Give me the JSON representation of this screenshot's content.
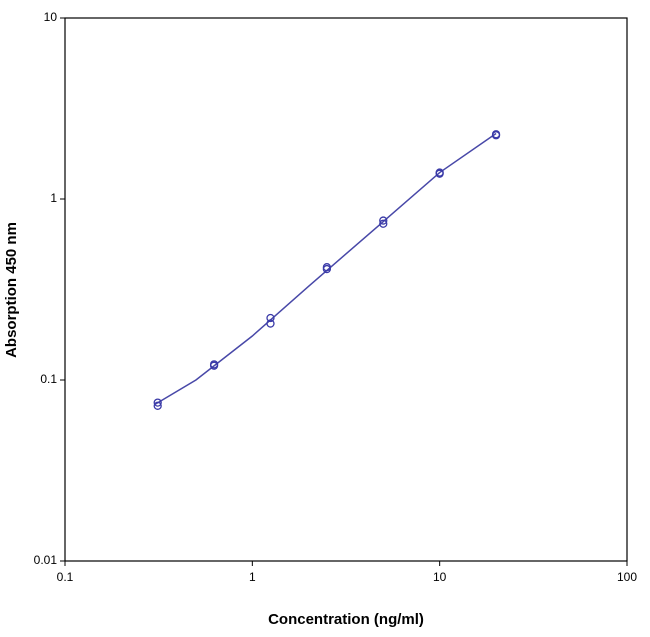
{
  "chart_data": {
    "type": "scatter",
    "x_label": "Concentration (ng/ml)",
    "y_label": "Absorption 450 nm",
    "xscale": "log",
    "yscale": "log",
    "xlim": [
      0.1,
      100
    ],
    "ylim": [
      0.01,
      10
    ],
    "xticks": [
      0.1,
      1,
      10,
      100
    ],
    "yticks": [
      0.01,
      0.1,
      1,
      10
    ],
    "x": [
      0.3125,
      0.625,
      1.25,
      2.5,
      5,
      10,
      20
    ],
    "series": [
      {
        "color": "#3a3aa8",
        "values": [
          0.075,
          0.122,
          0.22,
          0.42,
          0.76,
          1.4,
          2.28
        ]
      },
      {
        "color": "#3a3aa8",
        "values": [
          0.072,
          0.12,
          0.205,
          0.41,
          0.73,
          1.38,
          2.25
        ]
      }
    ],
    "fit": {
      "color": "#4848a8",
      "x": [
        0.3,
        0.5,
        1,
        2,
        5,
        10,
        20
      ],
      "values": [
        0.073,
        0.1,
        0.175,
        0.33,
        0.75,
        1.4,
        2.3
      ]
    }
  }
}
